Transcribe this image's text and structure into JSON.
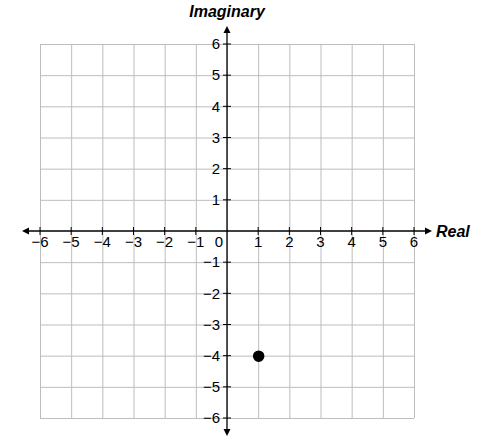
{
  "chart_data": {
    "type": "scatter",
    "x": [
      1
    ],
    "values": [
      -4
    ],
    "x_label": "Real",
    "y_label": "Imaginary",
    "xlim": [
      -6,
      6
    ],
    "ylim": [
      -6,
      6
    ],
    "xticks": [
      -6,
      -5,
      -4,
      -3,
      -2,
      -1,
      0,
      1,
      2,
      3,
      4,
      5,
      6
    ],
    "yticks": [
      -6,
      -5,
      -4,
      -3,
      -2,
      -1,
      1,
      2,
      3,
      4,
      5,
      6
    ],
    "grid": true,
    "color": "#000000",
    "marker": "circle"
  }
}
